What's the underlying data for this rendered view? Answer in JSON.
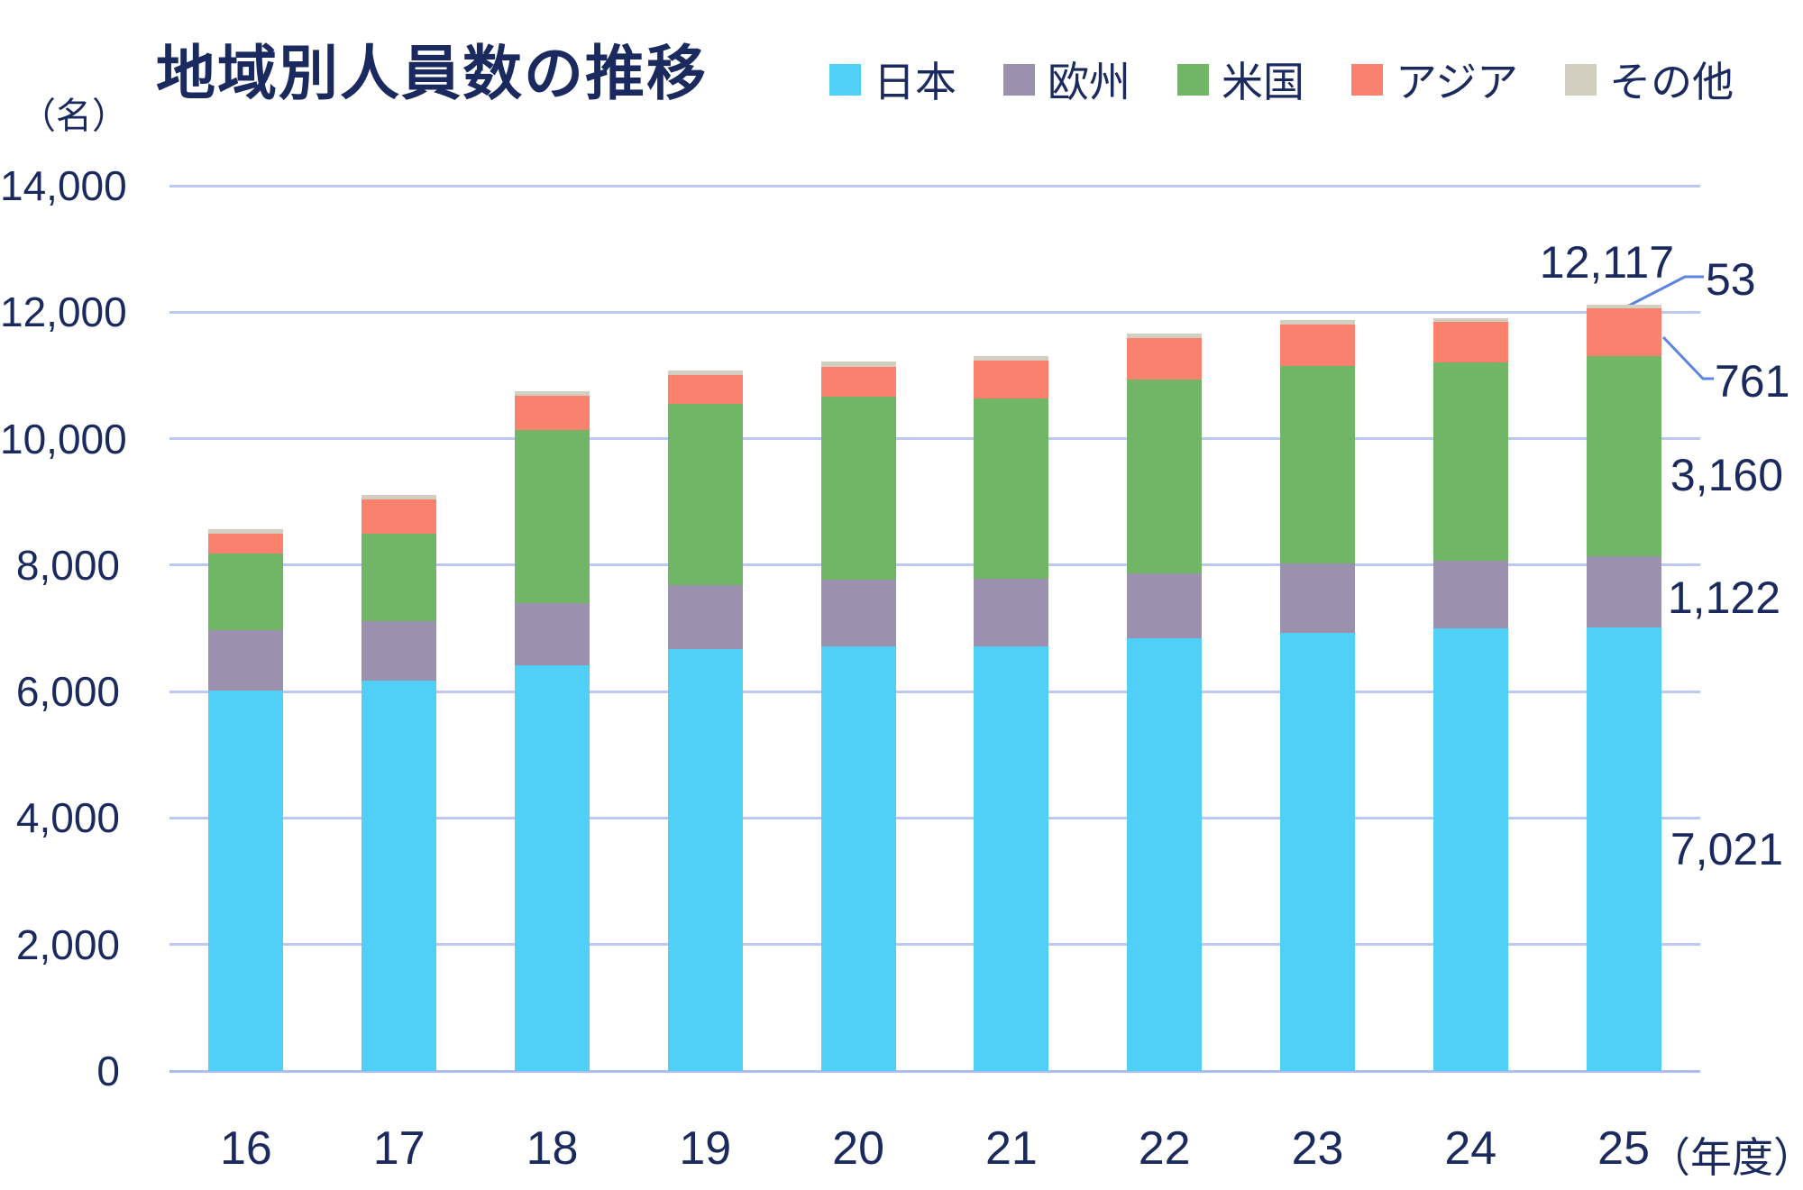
{
  "title": "地域別人員数の推移",
  "y_axis": {
    "unit_label": "（名）",
    "max": 14000,
    "ticks": [
      "14,000",
      "12,000",
      "10,000",
      "8,000",
      "6,000",
      "4,000",
      "2,000",
      "0"
    ]
  },
  "x_axis": {
    "suffix_label": "（年度）"
  },
  "callouts": {
    "total": "12,117",
    "other": "53",
    "asia": "761",
    "us": "3,160",
    "europe": "1,122",
    "japan": "7,021"
  },
  "colors": {
    "text_navy": "#1b2a5e",
    "gridline": "#bcc8f1",
    "leader_line": "#5c86dc",
    "japan_blue": "#51d0f7",
    "europe_purple": "#9c90af",
    "us_green": "#71b667",
    "asia_salmon": "#f9816e",
    "other_beige": "#d2cec0"
  },
  "chart_data": {
    "type": "bar",
    "stacked": true,
    "title": "地域別人員数の推移",
    "xlabel": "年度",
    "ylabel": "名",
    "ylim": [
      0,
      14000
    ],
    "grid": true,
    "legend_position": "top-right",
    "categories": [
      "16",
      "17",
      "18",
      "19",
      "20",
      "21",
      "22",
      "23",
      "24",
      "25"
    ],
    "series": [
      {
        "name": "日本",
        "color": "#51d0f7",
        "values": [
          6020,
          6180,
          6410,
          6670,
          6720,
          6710,
          6850,
          6930,
          6995,
          7021
        ]
      },
      {
        "name": "欧州",
        "color": "#9c90af",
        "values": [
          945,
          940,
          990,
          1010,
          1050,
          1080,
          1020,
          1090,
          1075,
          1122
        ]
      },
      {
        "name": "米国",
        "color": "#71b667",
        "values": [
          1220,
          1375,
          2740,
          2870,
          2900,
          2850,
          3065,
          3130,
          3140,
          3160
        ]
      },
      {
        "name": "アジア",
        "color": "#f9816e",
        "values": [
          310,
          550,
          545,
          460,
          470,
          595,
          655,
          660,
          640,
          761
        ]
      },
      {
        "name": "その他",
        "color": "#d2cec0",
        "values": [
          75,
          65,
          65,
          70,
          75,
          65,
          75,
          60,
          60,
          53
        ]
      }
    ],
    "labeled_year": "25",
    "year25_segment_labels": {
      "日本": "7,021",
      "欧州": "1,122",
      "米国": "3,160",
      "アジア": "761",
      "その他": "53",
      "total": "12,117"
    }
  }
}
